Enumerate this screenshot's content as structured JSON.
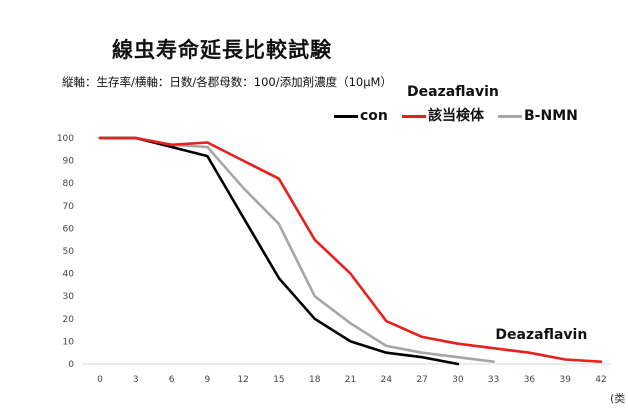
{
  "chart_data": {
    "type": "line",
    "title": "線虫寿命延長比較試験",
    "subtitle": "縦軸：生存率/横軸：日数/各郡母数：100/添加剤濃度（10μM）",
    "legend_heading": "Deazaflavin",
    "legend_placement": "top-right",
    "x": [
      0,
      3,
      6,
      9,
      12,
      15,
      18,
      21,
      24,
      27,
      30,
      33,
      36,
      39,
      42
    ],
    "ylim": [
      0,
      100
    ],
    "yticks": [
      0,
      10,
      20,
      30,
      40,
      50,
      60,
      70,
      80,
      90,
      100
    ],
    "grid": false,
    "series": [
      {
        "name": "con",
        "color": "#000000",
        "x": [
          0,
          3,
          6,
          9,
          12,
          15,
          18,
          21,
          24,
          27,
          30
        ],
        "values": [
          100,
          100,
          96,
          92,
          65,
          38,
          20,
          10,
          5,
          3,
          0
        ]
      },
      {
        "name": "該当検体",
        "color": "#e8201d",
        "x": [
          0,
          3,
          6,
          9,
          12,
          15,
          18,
          21,
          24,
          27,
          30,
          33,
          36,
          39,
          42
        ],
        "values": [
          100,
          100,
          97,
          98,
          90,
          82,
          55,
          40,
          19,
          12,
          9,
          7,
          5,
          2,
          1
        ]
      },
      {
        "name": "B-NMN",
        "color": "#a6a6a6",
        "x": [
          0,
          3,
          6,
          9,
          12,
          15,
          18,
          21,
          24,
          27,
          30,
          33
        ],
        "values": [
          100,
          100,
          97,
          96,
          78,
          62,
          30,
          18,
          8,
          5,
          3,
          1
        ]
      }
    ],
    "annotations": [
      {
        "text": "Deazaflavin",
        "x": 36,
        "y": 12
      }
    ]
  },
  "page": {
    "corner_text": "(类"
  }
}
